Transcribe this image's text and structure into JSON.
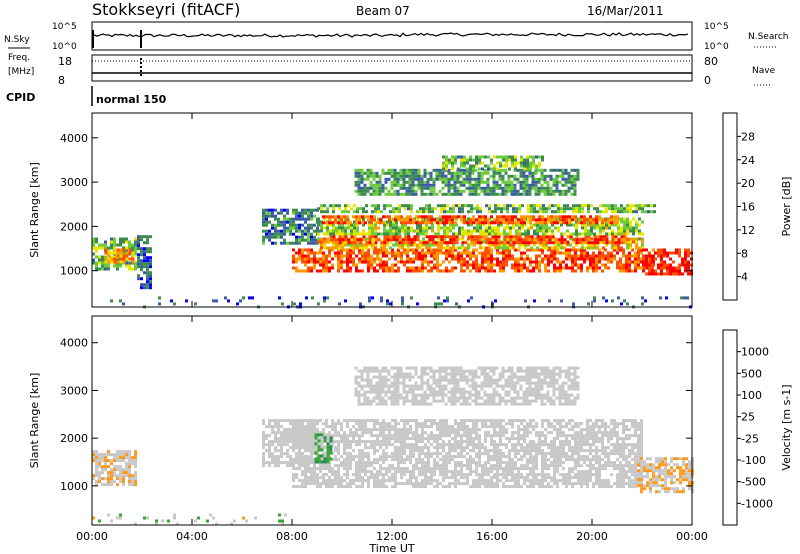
{
  "header": {
    "station": "Stokkseyri (fitACF)",
    "beam": "Beam 07",
    "date": "16/Mar/2011"
  },
  "top_panels": {
    "nsky_label": "N.Sky",
    "nsky_top": "10^5",
    "nsky_bottom": "10^0",
    "nsearch_label": "N.Search",
    "nsearch_top": "10^5",
    "nsearch_bottom": "10^0",
    "freq_label": "Freq.",
    "freq_unit": "[MHz]",
    "freq_top": "18",
    "freq_bottom": "8",
    "nave_label": "Nave",
    "nave_top": "80",
    "nave_bottom": "0",
    "cpid_label": "CPID",
    "cpid_value": "normal 150"
  },
  "chart_data": [
    {
      "type": "heatmap",
      "panel": "power",
      "ylabel": "Slant Range [km]",
      "xlabel": "",
      "x_ticks": [
        "00:00",
        "04:00",
        "08:00",
        "12:00",
        "16:00",
        "20:00",
        "00:00"
      ],
      "xlim_hours": [
        0,
        24
      ],
      "ylim": [
        180,
        4560
      ],
      "y_ticks": [
        1000,
        2000,
        3000,
        4000
      ],
      "colorbar": {
        "label": "Power [dB]",
        "ticks": [
          "28",
          "24",
          "20",
          "16",
          "12",
          "8",
          "4"
        ],
        "range": [
          0,
          30
        ],
        "colors": [
          "#0000ff",
          "#3c5aa8",
          "#3c8c50",
          "#6ecc3c",
          "#e6e600",
          "#ff9900",
          "#ff5000",
          "#ff0000"
        ]
      },
      "regions": [
        {
          "t0": 0.0,
          "t1": 1.8,
          "r0": 1050,
          "r1": 1750,
          "value": 12
        },
        {
          "t0": 0.5,
          "t1": 1.6,
          "r0": 1200,
          "r1": 1500,
          "value": 20
        },
        {
          "t0": 1.8,
          "t1": 2.4,
          "r0": 600,
          "r1": 1800,
          "value": 6
        },
        {
          "t0": 6.8,
          "t1": 9.0,
          "r0": 1600,
          "r1": 2400,
          "value": 8
        },
        {
          "t0": 8.0,
          "t1": 22.5,
          "r0": 1000,
          "r1": 1500,
          "value": 24
        },
        {
          "t0": 9.0,
          "t1": 22.0,
          "r0": 1500,
          "r1": 1750,
          "value": 18
        },
        {
          "t0": 9.5,
          "t1": 21.5,
          "r0": 1650,
          "r1": 1800,
          "value": 26
        },
        {
          "t0": 9.0,
          "t1": 22.0,
          "r0": 1800,
          "r1": 2200,
          "value": 14
        },
        {
          "t0": 9.2,
          "t1": 21.0,
          "r0": 2050,
          "r1": 2250,
          "value": 24
        },
        {
          "t0": 9.0,
          "t1": 22.5,
          "r0": 2300,
          "r1": 2500,
          "value": 12
        },
        {
          "t0": 10.5,
          "t1": 19.5,
          "r0": 2700,
          "r1": 3300,
          "value": 10
        },
        {
          "t0": 14.0,
          "t1": 18.0,
          "r0": 3300,
          "r1": 3600,
          "value": 12
        },
        {
          "t0": 22.0,
          "t1": 24.0,
          "r0": 900,
          "r1": 1500,
          "value": 28
        },
        {
          "t0": 0.0,
          "t1": 24.0,
          "r0": 200,
          "r1": 420,
          "value": 6
        }
      ]
    },
    {
      "type": "heatmap",
      "panel": "velocity",
      "ylabel": "Slant Range [km]",
      "xlabel": "Time UT",
      "x_ticks": [
        "00:00",
        "04:00",
        "08:00",
        "12:00",
        "16:00",
        "20:00",
        "00:00"
      ],
      "xlim_hours": [
        0,
        24
      ],
      "ylim": [
        180,
        4560
      ],
      "y_ticks": [
        1000,
        2000,
        3000,
        4000
      ],
      "colorbar": {
        "label": "Velocity [m s-1]",
        "ticks": [
          "1000",
          "500",
          "100",
          "25",
          "-25",
          "-100",
          "-500",
          "-1000"
        ],
        "range": [
          -1200,
          1200
        ],
        "colors": [
          "#ff0000",
          "#ff5a00",
          "#ff9a1a",
          "#c8c8c8",
          "#c8c8c8",
          "#33aa33",
          "#2e8b57",
          "#3c5aa8",
          "#0000cc"
        ]
      },
      "regions": [
        {
          "t0": 0.0,
          "t1": 1.8,
          "r0": 1050,
          "r1": 1750,
          "value": -300
        },
        {
          "t0": 6.8,
          "t1": 9.0,
          "r0": 1400,
          "r1": 2400,
          "value": 0
        },
        {
          "t0": 8.0,
          "t1": 22.0,
          "r0": 1000,
          "r1": 2400,
          "value": 0
        },
        {
          "t0": 10.5,
          "t1": 19.5,
          "r0": 2700,
          "r1": 3500,
          "value": 0
        },
        {
          "t0": 8.9,
          "t1": 9.6,
          "r0": 1500,
          "r1": 2100,
          "value": 300
        },
        {
          "t0": 21.8,
          "t1": 24.0,
          "r0": 900,
          "r1": 1600,
          "value": -300
        },
        {
          "t0": 0.0,
          "t1": 8.0,
          "r0": 200,
          "r1": 420,
          "value": -80
        }
      ]
    }
  ]
}
